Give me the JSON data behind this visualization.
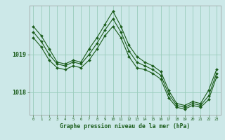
{
  "bg_color": "#cce8e8",
  "grid_color": "#99ccbb",
  "line_color": "#1a5c1a",
  "title": "Graphe pression niveau de la mer (hPa)",
  "ylabel_ticks": [
    1018,
    1019
  ],
  "xlim": [
    -0.5,
    23.5
  ],
  "ylim": [
    1017.4,
    1020.3
  ],
  "series1": [
    1019.75,
    1019.5,
    1019.15,
    1018.8,
    1018.75,
    1018.85,
    1018.8,
    1019.15,
    1019.45,
    1019.8,
    1020.15,
    1019.75,
    1019.25,
    1018.95,
    1018.8,
    1018.7,
    1018.55,
    1018.05,
    1017.7,
    1017.65,
    1017.75,
    1017.7,
    1018.05,
    1018.6
  ],
  "series2": [
    1019.6,
    1019.35,
    1019.0,
    1018.75,
    1018.7,
    1018.8,
    1018.75,
    1019.0,
    1019.3,
    1019.65,
    1019.95,
    1019.6,
    1019.1,
    1018.8,
    1018.7,
    1018.6,
    1018.45,
    1017.95,
    1017.65,
    1017.6,
    1017.7,
    1017.65,
    1017.9,
    1018.5
  ],
  "series3": [
    1019.45,
    1019.2,
    1018.85,
    1018.65,
    1018.6,
    1018.7,
    1018.65,
    1018.85,
    1019.15,
    1019.5,
    1019.75,
    1019.45,
    1018.95,
    1018.65,
    1018.6,
    1018.5,
    1018.35,
    1017.85,
    1017.6,
    1017.55,
    1017.65,
    1017.6,
    1017.8,
    1018.4
  ]
}
